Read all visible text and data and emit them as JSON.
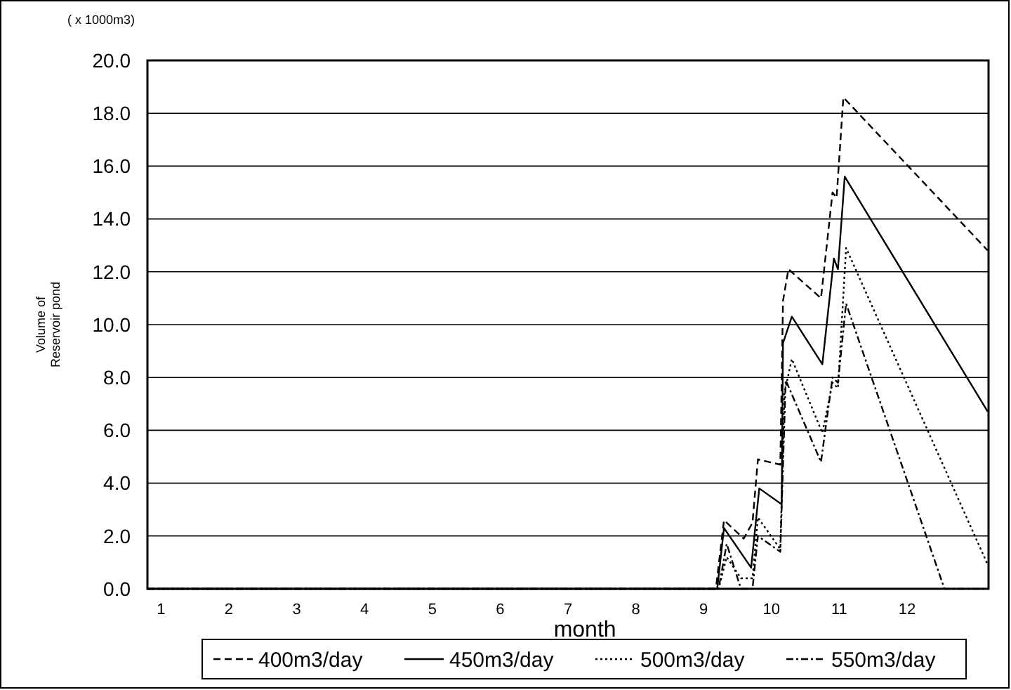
{
  "chart_data": {
    "type": "line",
    "xlabel": "month",
    "ylabel": "Volume of\nReservoir pond",
    "annotations": [
      "( x 1000m3)"
    ],
    "xlim": [
      0.8,
      13.2
    ],
    "xticks": [
      1,
      2,
      3,
      4,
      5,
      6,
      7,
      8,
      9,
      10,
      11,
      12
    ],
    "ylim": [
      0,
      20
    ],
    "yticks": [
      {
        "value": 0,
        "label": "0.0"
      },
      {
        "value": 2,
        "label": "2.0"
      },
      {
        "value": 4,
        "label": "4.0"
      },
      {
        "value": 6,
        "label": "6.0"
      },
      {
        "value": 8,
        "label": "8.0"
      },
      {
        "value": 10,
        "label": "10.0"
      },
      {
        "value": 12,
        "label": "12.0"
      },
      {
        "value": 14,
        "label": "14.0"
      },
      {
        "value": 16,
        "label": "16.0"
      },
      {
        "value": 18,
        "label": "18.0"
      },
      {
        "value": 20,
        "label": "20.0"
      }
    ],
    "grid": "y",
    "legend": "bottom",
    "series": [
      {
        "name": "400m3/day",
        "color": "#000000",
        "line_style": "dashed",
        "x": [
          0.8,
          9.18,
          9.3,
          9.59,
          9.72,
          9.8,
          10.13,
          10.17,
          10.25,
          10.73,
          10.9,
          10.96,
          11.06,
          13.19
        ],
        "values": [
          0,
          0,
          2.6,
          1.9,
          2.5,
          4.9,
          4.7,
          10.9,
          12.1,
          11.0,
          15.0,
          14.8,
          18.6,
          12.8
        ]
      },
      {
        "name": "450m3/day",
        "color": "#000000",
        "line_style": "solid",
        "x": [
          0.8,
          9.2,
          9.3,
          9.7,
          9.82,
          10.15,
          10.17,
          10.3,
          10.75,
          10.92,
          10.98,
          11.08,
          13.19
        ],
        "values": [
          0,
          0,
          2.3,
          0.8,
          3.8,
          3.2,
          9.3,
          10.3,
          8.5,
          12.5,
          12.1,
          15.6,
          6.7
        ]
      },
      {
        "name": "500m3/day",
        "color": "#000000",
        "line_style": "dotted",
        "x": [
          0.8,
          9.22,
          9.34,
          9.55,
          9.72,
          9.8,
          10.13,
          10.19,
          10.3,
          10.75,
          10.9,
          10.98,
          11.1,
          13.19
        ],
        "values": [
          0,
          0,
          1.2,
          0.4,
          0.4,
          2.7,
          1.5,
          7.4,
          8.7,
          5.9,
          7.8,
          7.6,
          12.9,
          0.9
        ]
      },
      {
        "name": "550m3/day",
        "color": "#000000",
        "line_style": "dashdot",
        "x": [
          0.8,
          9.22,
          9.34,
          9.55,
          9.72,
          9.8,
          10.13,
          10.21,
          10.73,
          10.9,
          10.98,
          11.1,
          12.55,
          13.19
        ],
        "values": [
          0,
          0,
          1.7,
          0,
          0,
          2.0,
          1.4,
          7.9,
          4.8,
          8.0,
          7.8,
          10.8,
          0,
          0
        ]
      }
    ]
  }
}
